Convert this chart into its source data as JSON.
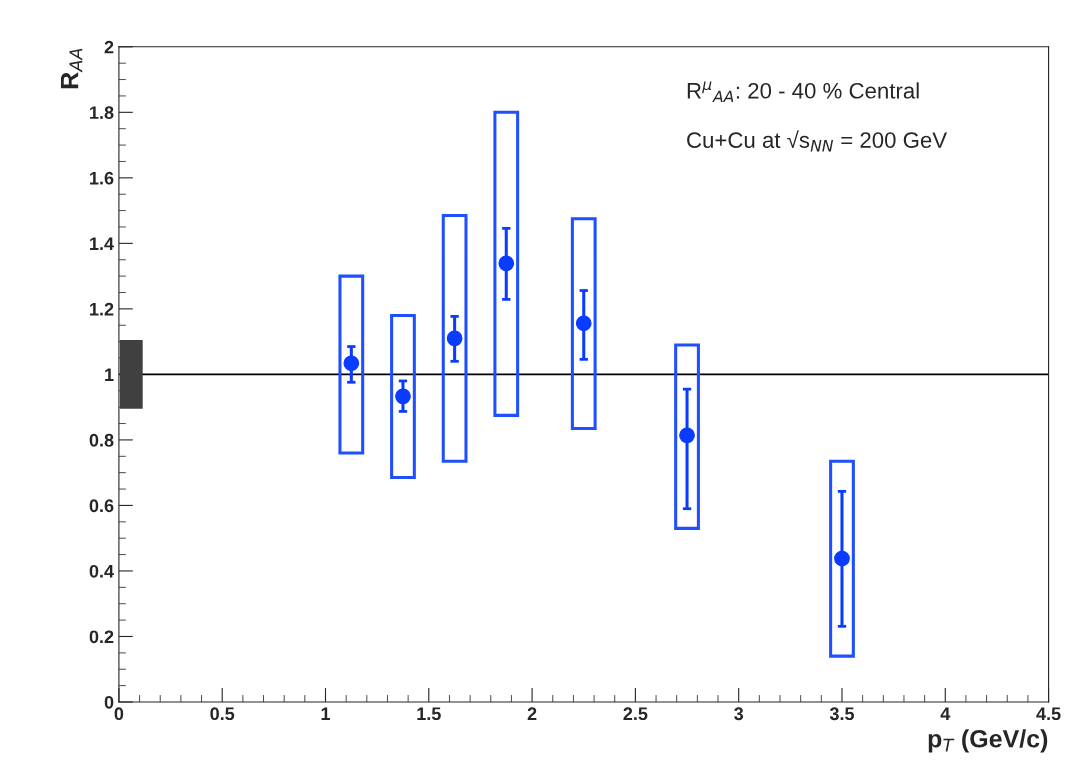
{
  "chart_data": {
    "type": "scatter",
    "xlabel": "p$_{T}$ (GeV/c)",
    "ylabel": "R$_{AA}$",
    "annotations": [
      "R$^{μ}$$_{AA}$: 20 - 40 % Central",
      "Cu+Cu at √s$_{NN}$ = 200 GeV"
    ],
    "xlim": [
      0,
      4.5
    ],
    "xticks": [
      0,
      0.5,
      1,
      1.5,
      2,
      2.5,
      3,
      3.5,
      4,
      4.5
    ],
    "ylim": [
      0,
      2
    ],
    "yticks": [
      0,
      0.2,
      0.4,
      0.6,
      0.8,
      1,
      1.2,
      1.4,
      1.6,
      1.8,
      2
    ],
    "ref_lines": [
      {
        "axis": "y",
        "value": 1,
        "color": "#000000"
      }
    ],
    "grid": false,
    "legend": false,
    "marker": "circle",
    "series": [
      {
        "type": "bar",
        "color": "#404040",
        "x": [
          0.06
        ],
        "base": [
          0.895
        ],
        "values": [
          0.21
        ]
      },
      {
        "type": "bar",
        "color": "#1f4fff",
        "x": [
          1.125,
          1.375,
          1.625,
          1.875,
          2.25,
          2.75,
          3.5
        ],
        "base": [
          0.76,
          0.685,
          0.735,
          0.875,
          0.835,
          0.53,
          0.14
        ],
        "values": [
          0.54,
          0.495,
          0.75,
          0.925,
          0.64,
          0.56,
          0.595
        ]
      },
      {
        "color": "#0a3cff",
        "x": [
          1.125,
          1.375,
          1.625,
          1.875,
          2.25,
          2.75,
          3.5
        ],
        "values": [
          1.034,
          0.933,
          1.11,
          1.339,
          1.156,
          0.814,
          0.438
        ],
        "errors": [
          [
            0.976,
            1.085
          ],
          [
            0.887,
            0.98
          ],
          [
            1.04,
            1.177
          ],
          [
            1.229,
            1.446
          ],
          [
            1.046,
            1.256
          ],
          [
            0.59,
            0.955
          ],
          [
            0.231,
            0.643
          ]
        ]
      }
    ]
  }
}
